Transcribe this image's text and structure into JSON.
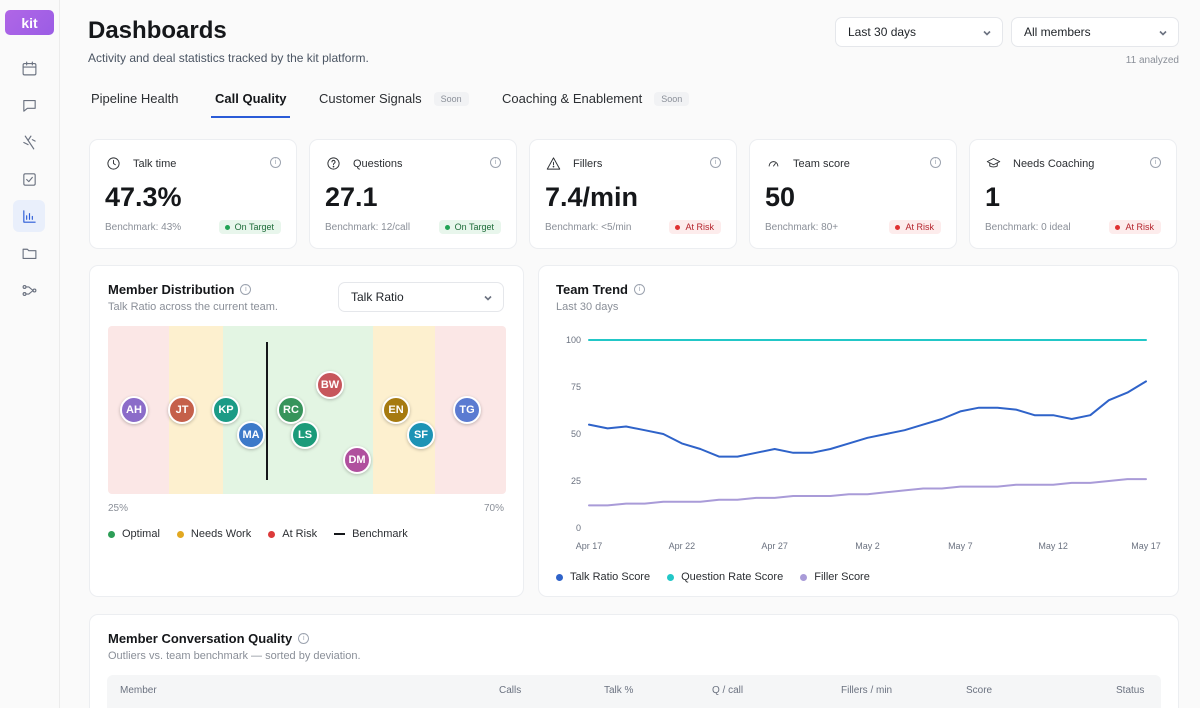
{
  "app": {
    "logo": "kit"
  },
  "sidebar": {
    "items": [
      {
        "icon": "calendar-icon"
      },
      {
        "icon": "chat-icon"
      },
      {
        "icon": "ranking-icon"
      },
      {
        "icon": "checkbox-icon"
      },
      {
        "icon": "bar-chart-icon",
        "active": true
      },
      {
        "icon": "folder-icon"
      },
      {
        "icon": "flow-icon"
      }
    ]
  },
  "header": {
    "title": "Dashboards",
    "subtitle": "Activity and deal statistics tracked by the kit platform.",
    "period": "Last 30 days",
    "members": "All members",
    "analyzed": "11 analyzed"
  },
  "tabs": [
    {
      "label": "Pipeline Health",
      "soon": ""
    },
    {
      "label": "Call Quality",
      "soon": "",
      "active": true
    },
    {
      "label": "Customer Signals",
      "soon": "Soon"
    },
    {
      "label": "Coaching & Enablement",
      "soon": "Soon"
    }
  ],
  "kpis": [
    {
      "label": "Talk time",
      "icon": "clock-icon",
      "value": "47.3%",
      "bench": "Benchmark: 43%",
      "status": "On Target",
      "tone": "ok"
    },
    {
      "label": "Questions",
      "icon": "question-icon",
      "value": "27.1",
      "bench": "Benchmark: 12/call",
      "status": "On Target",
      "tone": "ok"
    },
    {
      "label": "Fillers",
      "icon": "warning-icon",
      "value": "7.4/min",
      "bench": "Benchmark: <5/min",
      "status": "At Risk",
      "tone": "risk"
    },
    {
      "label": "Team score",
      "icon": "gauge-icon",
      "value": "50",
      "bench": "Benchmark: 80+",
      "status": "At Risk",
      "tone": "risk"
    },
    {
      "label": "Needs Coaching",
      "icon": "graduation-cap-icon",
      "value": "1",
      "bench": "Benchmark: 0 ideal",
      "status": "At Risk",
      "tone": "risk"
    }
  ],
  "distribution": {
    "title": "Member Distribution",
    "subtitle": "Talk Ratio across the current team.",
    "metric": "Talk Ratio",
    "min_label": "25%",
    "max_label": "70%",
    "members": [
      {
        "initials": "AH",
        "color": "#8b6cc9"
      },
      {
        "initials": "JT",
        "color": "#c5604a"
      },
      {
        "initials": "KP",
        "color": "#1b9b86"
      },
      {
        "initials": "MA",
        "color": "#3d7ac9"
      },
      {
        "initials": "RC",
        "color": "#37945b"
      },
      {
        "initials": "LS",
        "color": "#1b9b7a"
      },
      {
        "initials": "BW",
        "color": "#c7565c"
      },
      {
        "initials": "DM",
        "color": "#b0509e"
      },
      {
        "initials": "EN",
        "color": "#a67a10"
      },
      {
        "initials": "SF",
        "color": "#1d93b5"
      },
      {
        "initials": "TG",
        "color": "#5b7bd1"
      }
    ],
    "legend": [
      {
        "label": "Optimal",
        "color": "#2d9e57",
        "kind": "dot"
      },
      {
        "label": "Needs Work",
        "color": "#e2a821",
        "kind": "dot"
      },
      {
        "label": "At Risk",
        "color": "#dc3a3a",
        "kind": "dot"
      },
      {
        "label": "Benchmark",
        "color": "#15171a",
        "kind": "line"
      }
    ]
  },
  "trend": {
    "title": "Team Trend",
    "subtitle": "Last 30 days"
  },
  "chart_data": {
    "type": "line",
    "x": [
      "Apr 17",
      "Apr 18",
      "Apr 19",
      "Apr 20",
      "Apr 21",
      "Apr 22",
      "Apr 23",
      "Apr 24",
      "Apr 25",
      "Apr 26",
      "Apr 27",
      "Apr 28",
      "Apr 29",
      "Apr 30",
      "May 1",
      "May 2",
      "May 3",
      "May 4",
      "May 5",
      "May 6",
      "May 7",
      "May 8",
      "May 9",
      "May 10",
      "May 11",
      "May 12",
      "May 13",
      "May 14",
      "May 15",
      "May 16",
      "May 17"
    ],
    "x_ticks": [
      "Apr 17",
      "Apr 22",
      "Apr 27",
      "May 2",
      "May 7",
      "May 12",
      "May 17"
    ],
    "y_ticks": [
      0,
      25,
      50,
      75,
      100
    ],
    "ylim": [
      0,
      100
    ],
    "grid": false,
    "legend_position": "bottom",
    "series": [
      {
        "name": "Talk Ratio Score",
        "color": "#2f63c9",
        "values": [
          55,
          53,
          54,
          52,
          50,
          45,
          42,
          38,
          38,
          40,
          42,
          40,
          40,
          42,
          45,
          48,
          50,
          52,
          55,
          58,
          62,
          64,
          64,
          63,
          60,
          60,
          58,
          60,
          68,
          72,
          78
        ]
      },
      {
        "name": "Question Rate Score",
        "color": "#22c7c7",
        "values": [
          100,
          100,
          100,
          100,
          100,
          100,
          100,
          100,
          100,
          100,
          100,
          100,
          100,
          100,
          100,
          100,
          100,
          100,
          100,
          100,
          100,
          100,
          100,
          100,
          100,
          100,
          100,
          100,
          100,
          100,
          100
        ]
      },
      {
        "name": "Filler Score",
        "color": "#a99bd8",
        "values": [
          12,
          12,
          13,
          13,
          14,
          14,
          14,
          15,
          15,
          16,
          16,
          17,
          17,
          17,
          18,
          18,
          19,
          20,
          21,
          21,
          22,
          22,
          22,
          23,
          23,
          23,
          24,
          24,
          25,
          26,
          26
        ]
      }
    ]
  },
  "quality": {
    "title": "Member Conversation Quality",
    "subtitle": "Outliers vs. team benchmark — sorted by deviation.",
    "columns": [
      "Member",
      "Calls",
      "Talk %",
      "Q / call",
      "Fillers / min",
      "Score",
      "Status"
    ]
  }
}
